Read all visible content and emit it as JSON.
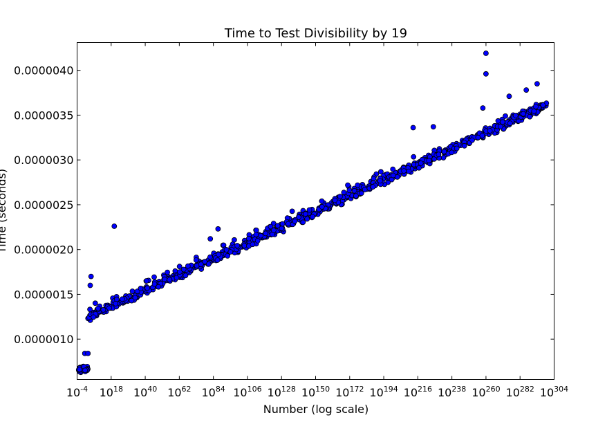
{
  "chart_data": {
    "type": "scatter",
    "title": "Time to Test Divisibility by 19",
    "xlabel": "Number (log scale)",
    "ylabel": "Time (seconds)",
    "x_scale": "log",
    "x_exponent_range": [
      -4,
      304
    ],
    "ylim": [
      5.5e-07,
      4.31e-06
    ],
    "grid": false,
    "marker_color": "#0000ff",
    "marker_edge_color": "#000000",
    "x_ticks": [
      {
        "base": "10",
        "exp": "-4"
      },
      {
        "base": "10",
        "exp": "18"
      },
      {
        "base": "10",
        "exp": "40"
      },
      {
        "base": "10",
        "exp": "62"
      },
      {
        "base": "10",
        "exp": "84"
      },
      {
        "base": "10",
        "exp": "106"
      },
      {
        "base": "10",
        "exp": "128"
      },
      {
        "base": "10",
        "exp": "150"
      },
      {
        "base": "10",
        "exp": "172"
      },
      {
        "base": "10",
        "exp": "194"
      },
      {
        "base": "10",
        "exp": "216"
      },
      {
        "base": "10",
        "exp": "238"
      },
      {
        "base": "10",
        "exp": "260"
      },
      {
        "base": "10",
        "exp": "282"
      },
      {
        "base": "10",
        "exp": "304"
      }
    ],
    "y_ticks": [
      "0.0000010",
      "0.0000015",
      "0.0000020",
      "0.0000025",
      "0.0000030",
      "0.0000035",
      "0.0000040"
    ],
    "trend": {
      "low_cluster": {
        "exp_range": [
          -4,
          3
        ],
        "time": 6.7e-07
      },
      "main_band": {
        "exp_range": [
          3,
          300
        ],
        "time_start": 1.25e-06,
        "time_end": 3.62e-06
      }
    },
    "outliers": [
      {
        "exp": 1,
        "time": 8.4e-07
      },
      {
        "exp": 3,
        "time": 8.4e-07
      },
      {
        "exp": 4.5,
        "time": 1.6e-06
      },
      {
        "exp": 5,
        "time": 1.7e-06
      },
      {
        "exp": 20,
        "time": 2.26e-06
      },
      {
        "exp": 87,
        "time": 2.23e-06
      },
      {
        "exp": 82,
        "time": 2.12e-06
      },
      {
        "exp": 213,
        "time": 3.36e-06
      },
      {
        "exp": 226,
        "time": 3.37e-06
      },
      {
        "exp": 258,
        "time": 3.58e-06
      },
      {
        "exp": 260,
        "time": 4.19e-06
      },
      {
        "exp": 260,
        "time": 3.96e-06
      },
      {
        "exp": 275,
        "time": 3.71e-06
      },
      {
        "exp": 286,
        "time": 3.78e-06
      },
      {
        "exp": 293,
        "time": 3.85e-06
      }
    ]
  }
}
